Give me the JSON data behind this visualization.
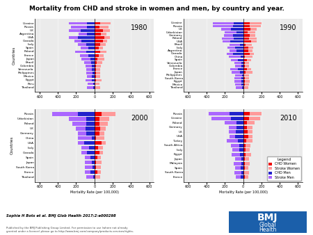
{
  "title": "Mortality from CHD and stroke in women and men, by country and year.",
  "xlabel": "Mortality Rate (per 100,000)",
  "ylabel": "Countries",
  "colors": {
    "chd_women": "#EE0000",
    "stroke_women": "#FF9999",
    "chd_men": "#2222CC",
    "stroke_men": "#AA66FF"
  },
  "xlim": 650,
  "years": [
    "1980",
    "1990",
    "2000",
    "2010"
  ],
  "panels": {
    "1980": {
      "countries": [
        "Thailand",
        "Peru",
        "Egypt",
        "Mexico",
        "Philippines",
        "Venezuela",
        "Colombia",
        "Brazil",
        "Japan",
        "France",
        "Poland",
        "Spain",
        "Italy",
        "Canada",
        "USA",
        "Argentina",
        "UK",
        "Russia",
        "Ukraine"
      ],
      "chd_women": [
        10,
        10,
        20,
        20,
        15,
        20,
        20,
        25,
        30,
        45,
        60,
        45,
        60,
        90,
        110,
        70,
        90,
        55,
        60
      ],
      "stroke_women": [
        50,
        45,
        55,
        45,
        50,
        45,
        50,
        60,
        80,
        55,
        70,
        50,
        60,
        50,
        60,
        60,
        80,
        100,
        120
      ],
      "chd_men": [
        12,
        15,
        25,
        25,
        20,
        25,
        25,
        35,
        45,
        70,
        90,
        70,
        90,
        140,
        180,
        80,
        150,
        80,
        80
      ],
      "stroke_men": [
        70,
        60,
        75,
        60,
        70,
        65,
        70,
        80,
        100,
        90,
        120,
        80,
        90,
        80,
        100,
        90,
        130,
        180,
        200
      ]
    },
    "1990": {
      "countries": [
        "Thailand",
        "Mexico",
        "Egypt",
        "South Korea",
        "Philippines",
        "Japan",
        "France",
        "Colombia",
        "Venezuela",
        "Spain",
        "China",
        "Canada",
        "Argentina",
        "Italy",
        "Brazil",
        "USA",
        "Poland",
        "Germany",
        "Uzbekistan",
        "UK",
        "Russia",
        "Ukraine"
      ],
      "chd_women": [
        8,
        18,
        18,
        15,
        13,
        25,
        40,
        18,
        18,
        40,
        20,
        75,
        55,
        55,
        25,
        90,
        65,
        70,
        50,
        80,
        70,
        70
      ],
      "stroke_women": [
        50,
        45,
        55,
        50,
        50,
        75,
        50,
        45,
        50,
        45,
        80,
        45,
        50,
        55,
        70,
        55,
        80,
        60,
        80,
        70,
        120,
        130
      ],
      "chd_men": [
        10,
        22,
        22,
        20,
        15,
        35,
        60,
        22,
        22,
        60,
        25,
        110,
        75,
        85,
        35,
        140,
        100,
        110,
        70,
        130,
        110,
        100
      ],
      "stroke_men": [
        70,
        65,
        75,
        75,
        70,
        90,
        80,
        65,
        75,
        70,
        130,
        70,
        75,
        85,
        110,
        85,
        130,
        100,
        130,
        110,
        220,
        230
      ]
    },
    "2000": {
      "countries": [
        "Thailand",
        "France",
        "South Korea",
        "Japan",
        "Spain",
        "Canada",
        "Italy",
        "USA",
        "China",
        "Germany",
        "UK",
        "Poland",
        "Uzbekistan",
        "Russia"
      ],
      "chd_women": [
        8,
        30,
        15,
        20,
        30,
        55,
        40,
        75,
        20,
        55,
        60,
        55,
        55,
        80
      ],
      "stroke_women": [
        55,
        40,
        55,
        60,
        40,
        40,
        50,
        45,
        90,
        55,
        60,
        90,
        110,
        150
      ],
      "chd_men": [
        10,
        45,
        22,
        28,
        45,
        80,
        60,
        110,
        30,
        90,
        100,
        90,
        90,
        180
      ],
      "stroke_men": [
        80,
        60,
        85,
        80,
        60,
        60,
        80,
        70,
        150,
        90,
        100,
        155,
        190,
        280
      ]
    },
    "2010": {
      "countries": [
        "France",
        "South Korea",
        "Spain",
        "Malaysia",
        "Japan",
        "Egypt",
        "Italy",
        "South Africa",
        "Turkey",
        "USA",
        "UK",
        "Germany",
        "Poland",
        "Ukraine",
        "Russia"
      ],
      "chd_women": [
        20,
        12,
        20,
        15,
        15,
        25,
        30,
        25,
        35,
        60,
        50,
        45,
        45,
        65,
        75
      ],
      "stroke_women": [
        35,
        50,
        40,
        55,
        50,
        60,
        45,
        55,
        70,
        40,
        50,
        55,
        80,
        120,
        130
      ],
      "chd_men": [
        28,
        18,
        30,
        20,
        20,
        35,
        45,
        40,
        60,
        90,
        80,
        70,
        75,
        130,
        150
      ],
      "stroke_men": [
        50,
        75,
        60,
        80,
        70,
        90,
        70,
        90,
        120,
        60,
        80,
        90,
        130,
        220,
        230
      ]
    }
  },
  "bottom_text1": "Sophie H Bots et al. BMJ Glob Health 2017;2:e000298",
  "bottom_text2": "Published by the BMJ Publishing Group Limited. For permission to use (where not already\ngranted under a licence) please go to http://www.bmj.com/company/products-services/rights-"
}
